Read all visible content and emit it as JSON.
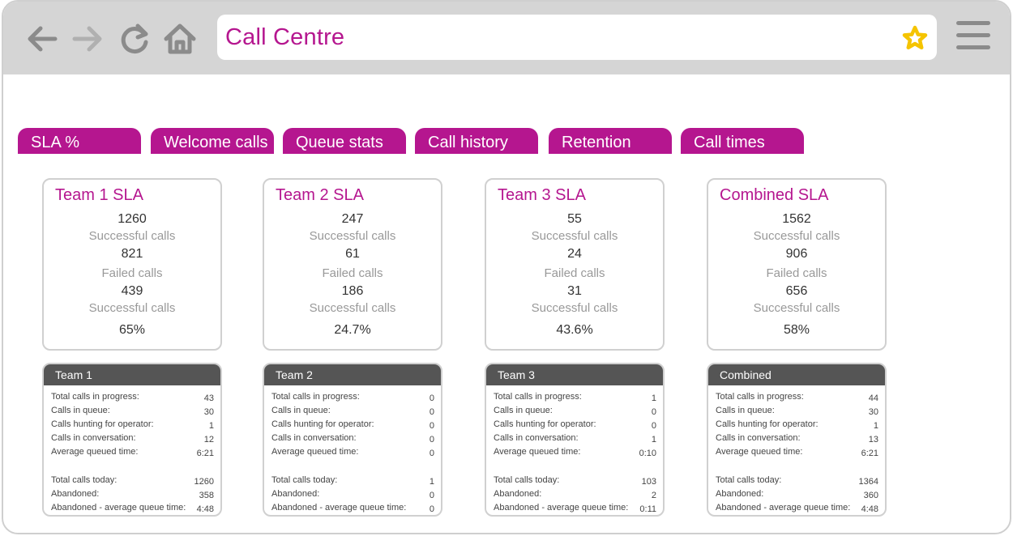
{
  "browser": {
    "url_title": "Call Centre",
    "icons": [
      "back-arrow-icon",
      "forward-arrow-icon",
      "reload-icon",
      "home-icon",
      "star-icon",
      "hamburger-menu-icon"
    ]
  },
  "tabs": [
    "SLA %",
    "Welcome calls",
    "Queue stats",
    "Call history",
    "Retention",
    "Call times"
  ],
  "sla_cards": [
    {
      "title": "Team 1 SLA",
      "successful": "1260",
      "successful_label": "Successful calls",
      "failed": "821",
      "failed_label": "Failed calls",
      "third": "439",
      "third_label": "Successful calls",
      "percent": "65%"
    },
    {
      "title": "Team 2 SLA",
      "successful": "247",
      "successful_label": "Successful calls",
      "failed": "61",
      "failed_label": "Failed calls",
      "third": "186",
      "third_label": "Successful calls",
      "percent": "24.7%"
    },
    {
      "title": "Team 3 SLA",
      "successful": "55",
      "successful_label": "Successful calls",
      "failed": "24",
      "failed_label": "Failed calls",
      "third": "31",
      "third_label": "Successful calls",
      "percent": "43.6%"
    },
    {
      "title": "Combined SLA",
      "successful": "1562",
      "successful_label": "Successful calls",
      "failed": "906",
      "failed_label": "Failed calls",
      "third": "656",
      "third_label": "Successful calls",
      "percent": "58%"
    }
  ],
  "stat_cards": [
    {
      "title": "Team 1",
      "rows": [
        {
          "label": "Total calls in progress:",
          "value": "43"
        },
        {
          "label": "Calls in queue:",
          "value": "30"
        },
        {
          "label": "Calls hunting for operator:",
          "value": "1"
        },
        {
          "label": "Calls in conversation:",
          "value": "12"
        },
        {
          "label": "Average queued time:",
          "value": "6:21"
        },
        {
          "label": "Total calls today:",
          "value": "1260"
        },
        {
          "label": "Abandoned:",
          "value": "358"
        },
        {
          "label": "Abandoned - average queue time:",
          "value": "4:48"
        }
      ]
    },
    {
      "title": "Team 2",
      "rows": [
        {
          "label": "Total calls in progress:",
          "value": "0"
        },
        {
          "label": "Calls in queue:",
          "value": "0"
        },
        {
          "label": "Calls hunting for operator:",
          "value": "0"
        },
        {
          "label": "Calls in conversation:",
          "value": "0"
        },
        {
          "label": "Average queued time:",
          "value": "0"
        },
        {
          "label": "Total calls today:",
          "value": "1"
        },
        {
          "label": "Abandoned:",
          "value": "0"
        },
        {
          "label": "Abandoned - average queue time:",
          "value": "0"
        }
      ]
    },
    {
      "title": "Team 3",
      "rows": [
        {
          "label": "Total calls in progress:",
          "value": "1"
        },
        {
          "label": "Calls in queue:",
          "value": "0"
        },
        {
          "label": "Calls hunting for operator:",
          "value": "0"
        },
        {
          "label": "Calls in conversation:",
          "value": "1"
        },
        {
          "label": "Average queued time:",
          "value": "0:10"
        },
        {
          "label": "Total calls today:",
          "value": "103"
        },
        {
          "label": "Abandoned:",
          "value": "2"
        },
        {
          "label": "Abandoned - average queue time:",
          "value": "0:11"
        }
      ]
    },
    {
      "title": "Combined",
      "rows": [
        {
          "label": "Total calls in progress:",
          "value": "44"
        },
        {
          "label": "Calls in queue:",
          "value": "30"
        },
        {
          "label": "Calls hunting for operator:",
          "value": "1"
        },
        {
          "label": "Calls in conversation:",
          "value": "13"
        },
        {
          "label": "Average queued time:",
          "value": "6:21"
        },
        {
          "label": "Total calls today:",
          "value": "1364"
        },
        {
          "label": "Abandoned:",
          "value": "360"
        },
        {
          "label": "Abandoned - average queue time:",
          "value": "4:48"
        }
      ]
    }
  ],
  "colors": {
    "accent": "#b5168f",
    "browser_chrome": "#d5d5d5",
    "card_header": "#555555",
    "star": "#f5c400"
  }
}
